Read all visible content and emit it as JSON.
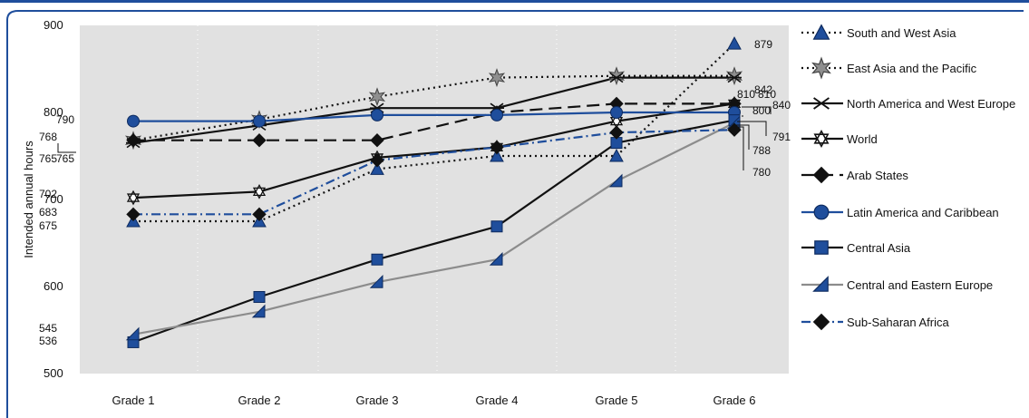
{
  "chart_data": {
    "type": "line",
    "title": "",
    "xlabel": "",
    "ylabel": "Intended annual hours",
    "ylim": [
      500,
      900
    ],
    "yticks": [
      500,
      600,
      700,
      800,
      900
    ],
    "categories": [
      "Grade 1",
      "Grade 2",
      "Grade 3",
      "Grade 4",
      "Grade 5",
      "Grade 6"
    ],
    "grid": "vertical dashed white lines on grey background",
    "legend_position": "right",
    "colors": {
      "frame": "#1f4e9c",
      "plot_bg": "#e1e1e1",
      "blue": "#1f4e9c",
      "black": "#111111",
      "grey": "#8c8c8c"
    },
    "series": [
      {
        "name": "South and West Asia",
        "values": [
          675,
          675,
          735,
          750,
          750,
          879
        ],
        "color": "#111111",
        "dash": "dotted",
        "marker": "triangle-blue"
      },
      {
        "name": "East Asia and the Pacific",
        "values": [
          768,
          792,
          818,
          840,
          842,
          842
        ],
        "color": "#111111",
        "dash": "dotted",
        "marker": "star-grey"
      },
      {
        "name": "North America and West Europe",
        "values": [
          765,
          785,
          805,
          805,
          840,
          840
        ],
        "color": "#111111",
        "dash": "solid",
        "marker": "asterisk"
      },
      {
        "name": "World",
        "values": [
          702,
          709,
          748,
          760,
          790,
          810
        ],
        "color": "#111111",
        "dash": "solid",
        "marker": "star-outline"
      },
      {
        "name": "Arab States",
        "values": [
          768,
          768,
          768,
          800,
          810,
          810
        ],
        "color": "#111111",
        "dash": "longdash",
        "marker": "diamond"
      },
      {
        "name": "Latin America and Caribbean",
        "values": [
          790,
          790,
          797,
          797,
          800,
          800
        ],
        "color": "#1f4e9c",
        "dash": "solid",
        "marker": "circle-blue"
      },
      {
        "name": "Central Asia",
        "values": [
          536,
          588,
          631,
          669,
          765,
          791
        ],
        "color": "#111111",
        "dash": "solid",
        "marker": "square-blue"
      },
      {
        "name": "Central and Eastern Europe",
        "values": [
          545,
          571,
          605,
          631,
          721,
          788
        ],
        "color": "#8c8c8c",
        "dash": "solid",
        "marker": "triangle-grey"
      },
      {
        "name": "Sub-Saharan Africa",
        "values": [
          683,
          683,
          745,
          760,
          777,
          780
        ],
        "color": "#1f4e9c",
        "dash": "dashdot",
        "marker": "diamond"
      }
    ],
    "data_labels": [
      {
        "text": "790",
        "series": "Latin America and Caribbean",
        "point": 0
      },
      {
        "text": "768",
        "series": "Arab States",
        "point": 0
      },
      {
        "text": "765",
        "series": "North America and West Europe",
        "point": 0
      },
      {
        "text": "765",
        "series": "North America and West Europe",
        "point": 0
      },
      {
        "text": "702",
        "series": "World",
        "point": 0
      },
      {
        "text": "683",
        "series": "Sub-Saharan Africa",
        "point": 0
      },
      {
        "text": "675",
        "series": "South and West Asia",
        "point": 0
      },
      {
        "text": "545",
        "series": "Central and Eastern Europe",
        "point": 0
      },
      {
        "text": "536",
        "series": "Central Asia",
        "point": 0
      },
      {
        "text": "879",
        "series": "South and West Asia",
        "point": 5
      },
      {
        "text": "842",
        "series": "East Asia and the Pacific",
        "point": 5
      },
      {
        "text": "840",
        "series": "North America and West Europe",
        "point": 5
      },
      {
        "text": "810",
        "series": "Arab States",
        "point": 5
      },
      {
        "text": "810",
        "series": "World",
        "point": 5
      },
      {
        "text": "800",
        "series": "Latin America and Caribbean",
        "point": 5
      },
      {
        "text": "791",
        "series": "Central Asia",
        "point": 5
      },
      {
        "text": "788",
        "series": "Central and Eastern Europe",
        "point": 5
      },
      {
        "text": "780",
        "series": "Sub-Saharan Africa",
        "point": 5
      }
    ]
  }
}
